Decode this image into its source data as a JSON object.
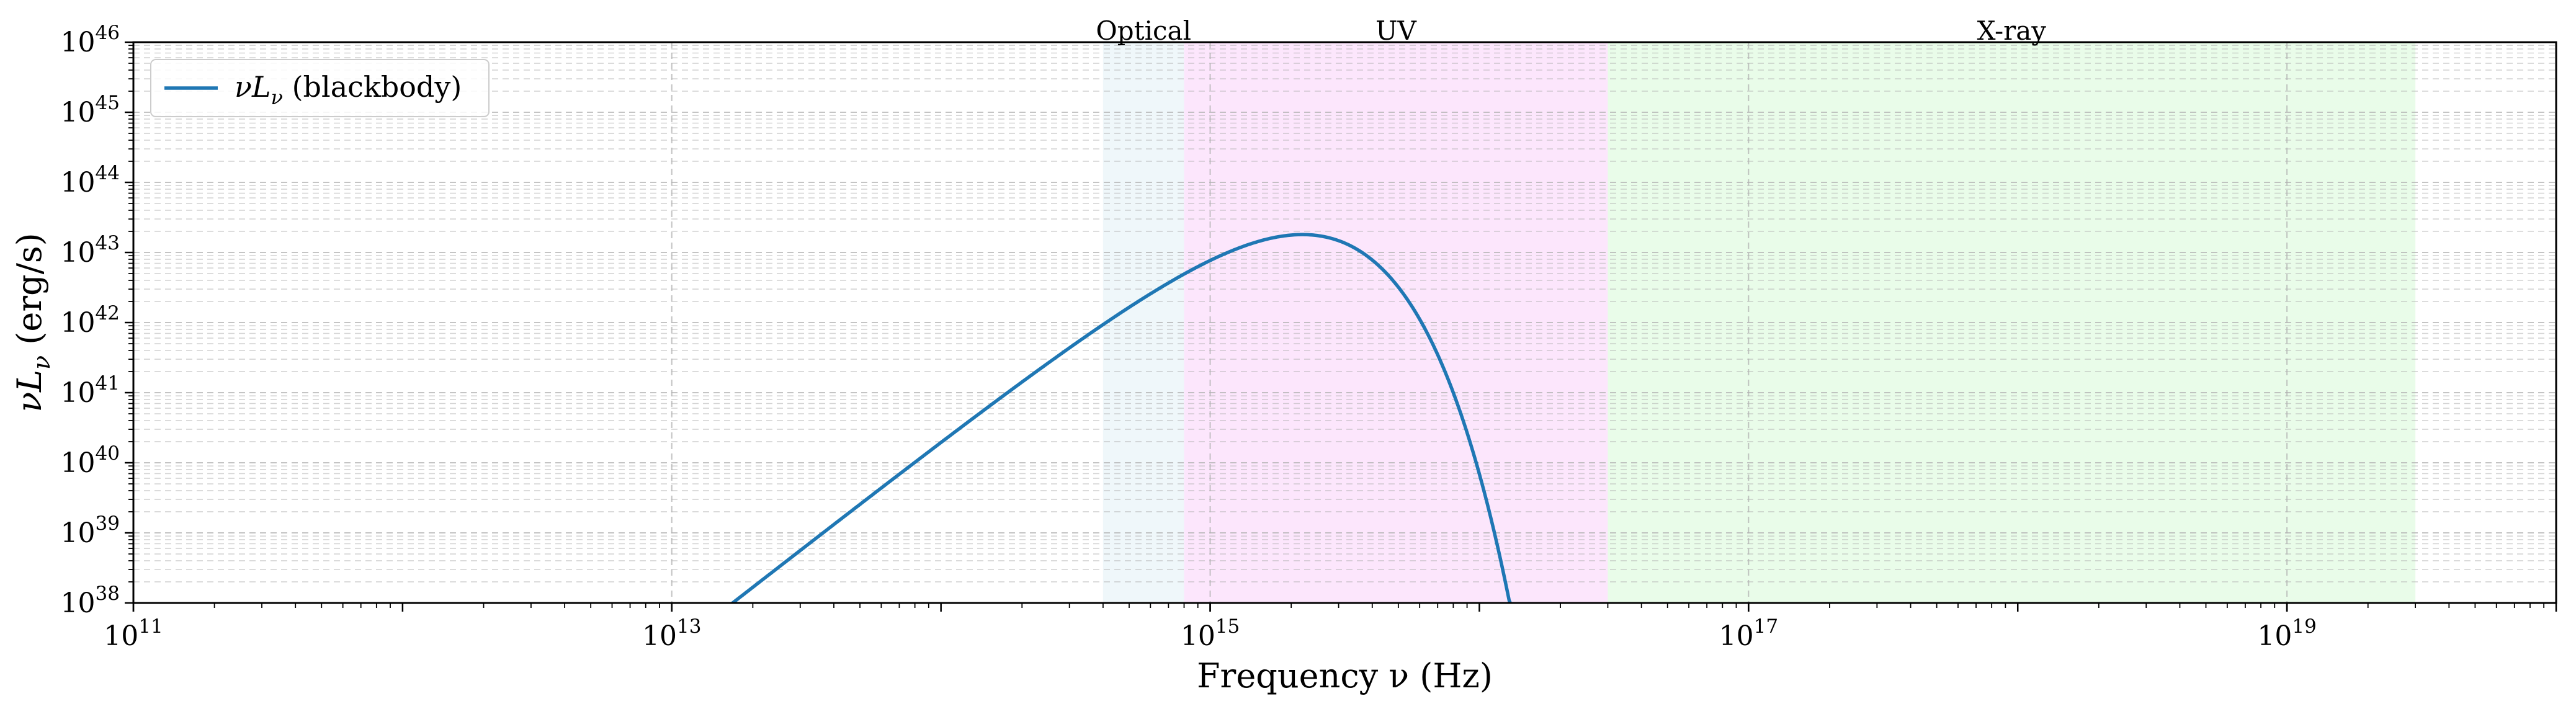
{
  "chart_data": {
    "type": "line",
    "x_scale": "log",
    "y_scale": "log",
    "xlim": [
      100000000000.0,
      1e+20
    ],
    "ylim": [
      1e+38,
      1e+46
    ],
    "xlabel": "Frequency ν (Hz)",
    "ylabel": "νL_ν (erg/s)",
    "x_tick_values": [
      100000000000.0,
      10000000000000.0,
      1000000000000000.0,
      1e+17,
      1e+19
    ],
    "x_tick_labels": [
      {
        "base": "10",
        "exp": "11"
      },
      {
        "base": "10",
        "exp": "13"
      },
      {
        "base": "10",
        "exp": "15"
      },
      {
        "base": "10",
        "exp": "17"
      },
      {
        "base": "10",
        "exp": "19"
      }
    ],
    "y_tick_values": [
      1e+38,
      1e+39,
      1e+40,
      1e+41,
      1e+42,
      1e+43,
      1e+44,
      1e+45,
      1e+46
    ],
    "y_tick_labels": [
      {
        "base": "10",
        "exp": "38"
      },
      {
        "base": "10",
        "exp": "39"
      },
      {
        "base": "10",
        "exp": "40"
      },
      {
        "base": "10",
        "exp": "41"
      },
      {
        "base": "10",
        "exp": "42"
      },
      {
        "base": "10",
        "exp": "43"
      },
      {
        "base": "10",
        "exp": "44"
      },
      {
        "base": "10",
        "exp": "45"
      },
      {
        "base": "10",
        "exp": "46"
      }
    ],
    "grid": true,
    "legend_position": "top-left",
    "series": [
      {
        "name": "νL_ν (blackbody)",
        "color": "#1f77b4",
        "model": "blackbody",
        "peak": {
          "x": 2200000000000000.0,
          "y": 1.8e+43
        }
      }
    ],
    "bands": [
      {
        "label": "Optical",
        "xrange": [
          400000000000000.0,
          800000000000000.0
        ],
        "color": "#ADD8E6",
        "opacity": 0.2
      },
      {
        "label": "UV",
        "xrange": [
          800000000000000.0,
          3e+16
        ],
        "color": "#EE82EE",
        "opacity": 0.2
      },
      {
        "label": "X-ray",
        "xrange": [
          3e+16,
          3e+19
        ],
        "color": "#90EE90",
        "opacity": 0.2
      }
    ]
  }
}
